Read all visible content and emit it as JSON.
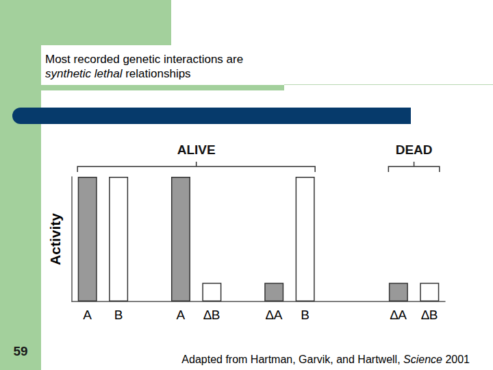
{
  "chart_data": {
    "type": "bar",
    "ylabel": "Activity",
    "categories": [
      "A",
      "B",
      null,
      "A",
      "∆B",
      null,
      "∆A",
      "B",
      null,
      null,
      "∆A",
      "∆B"
    ],
    "values": [
      100,
      100,
      null,
      100,
      15,
      null,
      15,
      100,
      null,
      null,
      15,
      15
    ],
    "colors": [
      "#999999",
      "#ffffff",
      null,
      "#999999",
      "#ffffff",
      null,
      "#999999",
      "#ffffff",
      null,
      null,
      "#999999",
      "#ffffff"
    ],
    "ylim": [
      0,
      100
    ],
    "tick_labels": "x",
    "grid": false,
    "annotations": [
      "ALIVE",
      "DEAD"
    ]
  },
  "slide": {
    "title_lines": [
      [
        {
          "text": "Most recorded genetic interactions are"
        }
      ],
      [
        {
          "text": "synthetic lethal",
          "italic": true
        },
        {
          "text": " relationships"
        }
      ]
    ],
    "page_number": 59,
    "source": [
      {
        "text": "Adapted from Hartman, Garvik, and Hartwell, "
      },
      {
        "text": "Science",
        "italic": true
      },
      {
        "text": " 2001"
      }
    ]
  }
}
